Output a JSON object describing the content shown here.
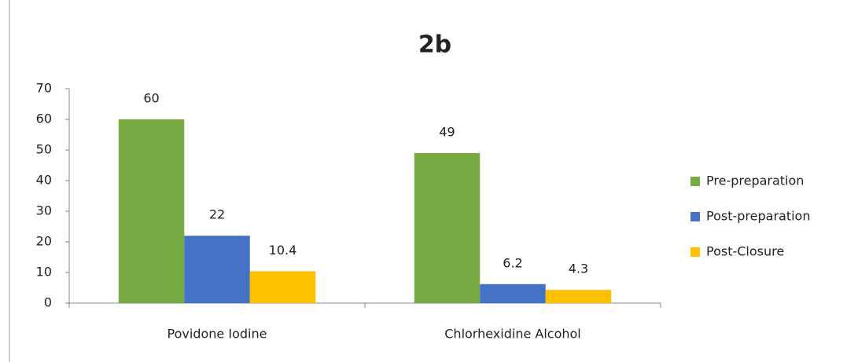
{
  "chart_data": {
    "type": "bar",
    "title": "2b",
    "categories": [
      "Povidone Iodine",
      "Chlorhexidine Alcohol"
    ],
    "series": [
      {
        "name": "Pre-preparation",
        "color": "#77aa43",
        "values": [
          60,
          49
        ]
      },
      {
        "name": "Post-preparation",
        "color": "#4472c4",
        "values": [
          22,
          6.2
        ]
      },
      {
        "name": "Post-Closure",
        "color": "#ffc000",
        "values": [
          10.4,
          4.3
        ]
      }
    ],
    "ylim": [
      0,
      70
    ],
    "yticks": [
      0,
      10,
      20,
      30,
      40,
      50,
      60,
      70
    ],
    "legend": "right"
  }
}
